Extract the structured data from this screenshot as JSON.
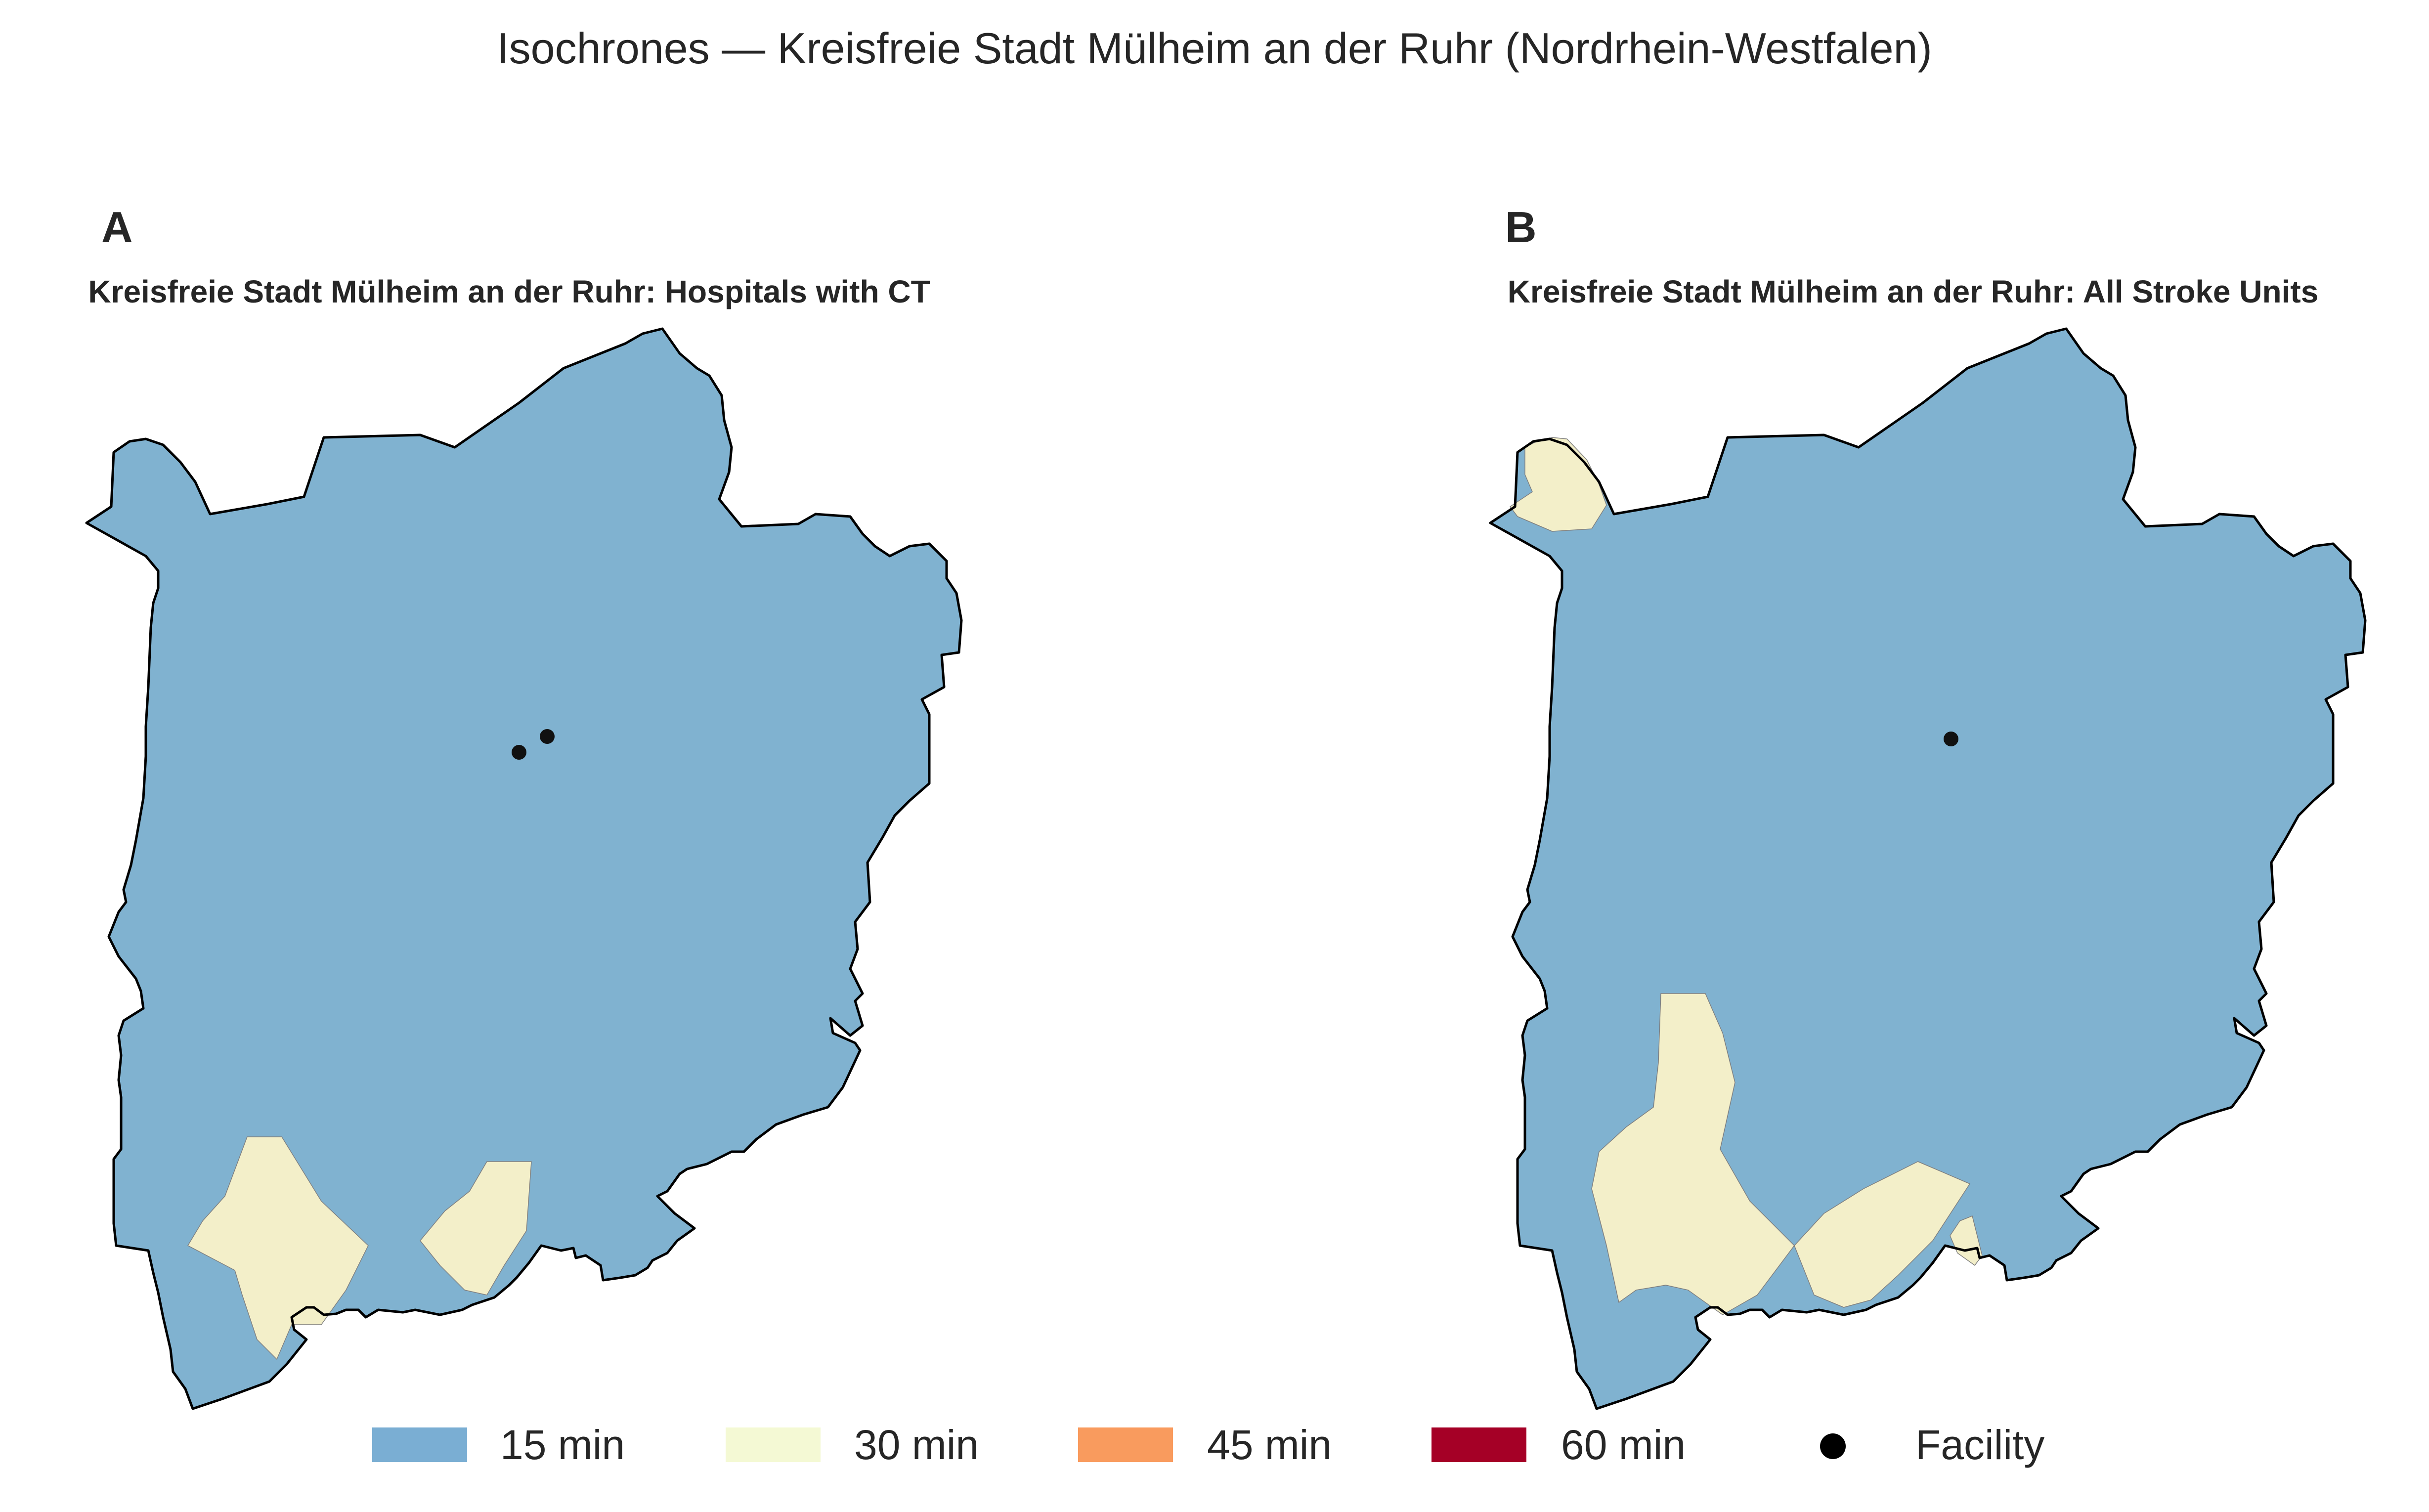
{
  "figure": {
    "title": "Isochrones — Kreisfreie Stadt Mülheim an der Ruhr (Nordrhein-Westfalen)"
  },
  "colors": {
    "min15": "#80b2d0",
    "min30": "#f3efc9",
    "outline": "#000000",
    "facility": "#111111"
  },
  "panels": [
    {
      "letter": "A",
      "title": "Kreisfreie Stadt Mülheim an der Ruhr: Hospitals with CT",
      "facility_count": 2
    },
    {
      "letter": "B",
      "title": "Kreisfreie Stadt Mülheim an der Ruhr: All Stroke Units",
      "facility_count": 1
    }
  ],
  "legend": {
    "items": [
      {
        "label": "15 min",
        "color": "#7aaed3",
        "kind": "patch"
      },
      {
        "label": "30 min",
        "color": "#f4f9d4",
        "kind": "patch"
      },
      {
        "label": "45 min",
        "color": "#f99b5e",
        "kind": "patch"
      },
      {
        "label": "60 min",
        "color": "#a50026",
        "kind": "patch"
      },
      {
        "label": "Facility",
        "color": "#000000",
        "kind": "dot"
      }
    ]
  }
}
